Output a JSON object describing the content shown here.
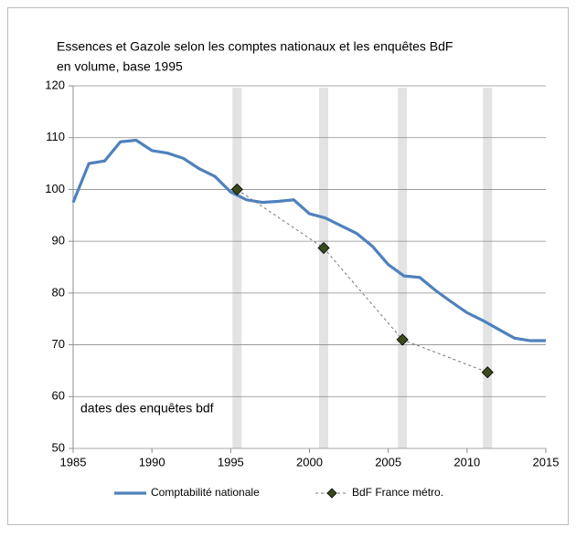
{
  "chart_data": {
    "type": "line",
    "title": "Essences et Gazole selon les comptes nationaux  et les enquêtes BdF",
    "subtitle": "en volume, base 1995",
    "annotation": "dates des enquêtes bdf",
    "xlim": [
      1985,
      2015
    ],
    "xticks": [
      1985,
      1990,
      1995,
      2000,
      2005,
      2010,
      2015
    ],
    "ylim": [
      50,
      120
    ],
    "yticks": [
      50,
      60,
      70,
      80,
      90,
      100,
      110,
      120
    ],
    "grid": true,
    "legend": "bottom",
    "series": [
      {
        "name": "Comptabilité nationale",
        "color": "#4f81bd",
        "x": [
          1985,
          1986,
          1987,
          1988,
          1989,
          1990,
          1991,
          1992,
          1993,
          1994,
          1995,
          1996,
          1997,
          1998,
          1999,
          2000,
          2001,
          2002,
          2003,
          2004,
          2005,
          2006,
          2007,
          2008,
          2009,
          2010,
          2011,
          2012,
          2013,
          2014,
          2015
        ],
        "values": [
          97.5,
          105,
          105.5,
          109.2,
          109.5,
          107.5,
          107,
          106,
          104,
          102.5,
          99.5,
          98,
          97.5,
          97.7,
          98,
          95.3,
          94.5,
          93,
          91.5,
          89,
          85.5,
          83.3,
          83,
          80.5,
          78.3,
          76.2,
          74.7,
          73,
          71.3,
          70.8,
          70.8
        ]
      },
      {
        "name": "BdF France métro.",
        "color": "#3a4a1a",
        "x": [
          1995.4,
          2000.9,
          2005.9,
          2011.3
        ],
        "values": [
          100,
          88.7,
          71,
          64.7
        ]
      }
    ]
  }
}
